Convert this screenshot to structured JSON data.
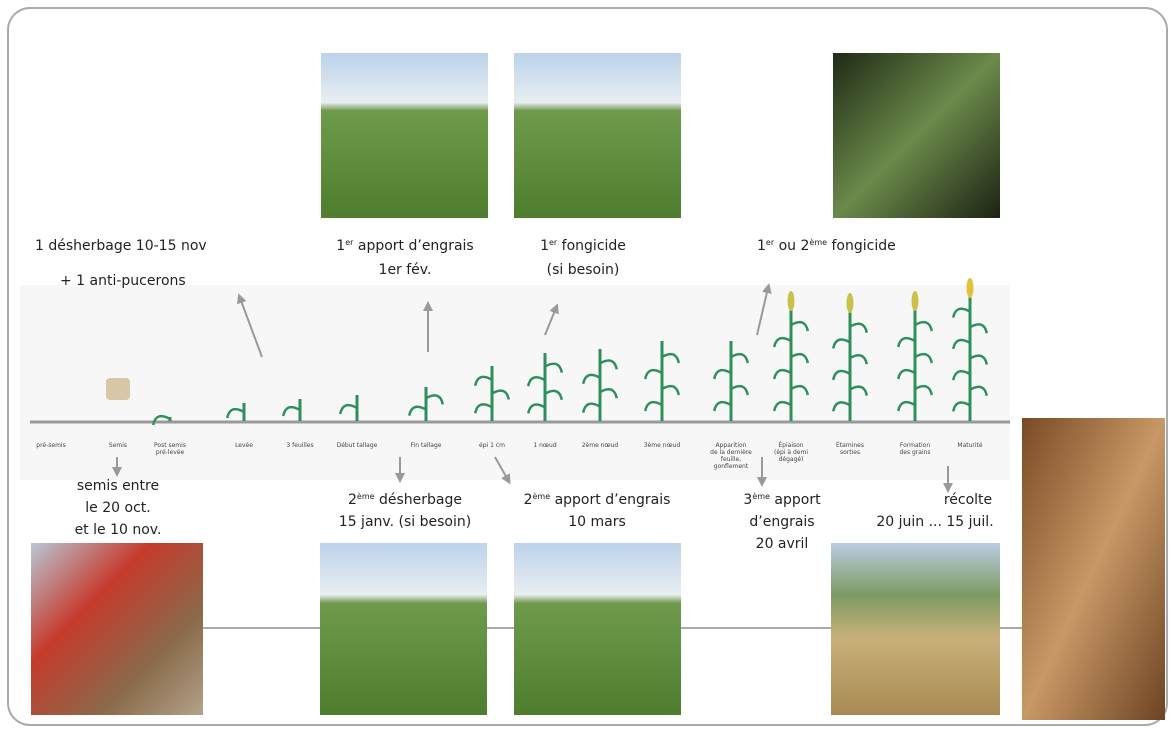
{
  "annotations_top": [
    {
      "lines": [
        {
          "text": "1 désherbage 10-15 nov"
        },
        {
          "text": "+ 1 anti-pucerons"
        }
      ]
    },
    {
      "lines": [
        {
          "pre": "1",
          "sup": "er",
          "post": " apport d’engrais"
        },
        {
          "text": "1er fév."
        }
      ]
    },
    {
      "lines": [
        {
          "pre": "1",
          "sup": "er",
          "post": " fongicide"
        },
        {
          "text": "(si besoin)"
        }
      ]
    },
    {
      "lines": [
        {
          "pre": "1",
          "sup": "er",
          "post": " ou 2",
          "sup2": "ème",
          "post2": " fongicide"
        }
      ]
    }
  ],
  "annotations_bottom": [
    {
      "lines": [
        {
          "text": "semis entre"
        },
        {
          "text": "le 20 oct."
        },
        {
          "text": "et le 10 nov."
        }
      ]
    },
    {
      "lines": [
        {
          "pre": "2",
          "sup": "ème",
          "post": " désherbage"
        },
        {
          "text": "15 janv. (si besoin)"
        }
      ]
    },
    {
      "lines": [
        {
          "pre": "2",
          "sup": "ème",
          "post": " apport d’engrais"
        },
        {
          "text": "10 mars"
        }
      ]
    },
    {
      "lines": [
        {
          "pre": "3",
          "sup": "ème",
          "post": " apport"
        },
        {
          "text": "d’engrais"
        },
        {
          "text": "20 avril"
        }
      ]
    },
    {
      "lines": [
        {
          "text": "récolte"
        },
        {
          "text": "20 juin ... 15 juil."
        }
      ]
    }
  ],
  "stages": [
    [
      "pré-semis"
    ],
    [
      "Semis"
    ],
    [
      "Post semis",
      "pré-levée"
    ],
    [
      "Levée"
    ],
    [
      "3 feuilles"
    ],
    [
      "Début tallage"
    ],
    [
      "Fin tallage"
    ],
    [
      "épi 1 cm"
    ],
    [
      "1 nœud"
    ],
    [
      "2ème nœud"
    ],
    [
      "3ème nœud"
    ],
    [
      "Apparition",
      "de la dernière",
      "feuille,",
      "gonflement"
    ],
    [
      "Épiaison",
      "(épi à demi",
      "dégagé)"
    ],
    [
      "Étamines",
      "sorties"
    ],
    [
      "Formation",
      "des grains"
    ],
    [
      "Maturité"
    ]
  ]
}
